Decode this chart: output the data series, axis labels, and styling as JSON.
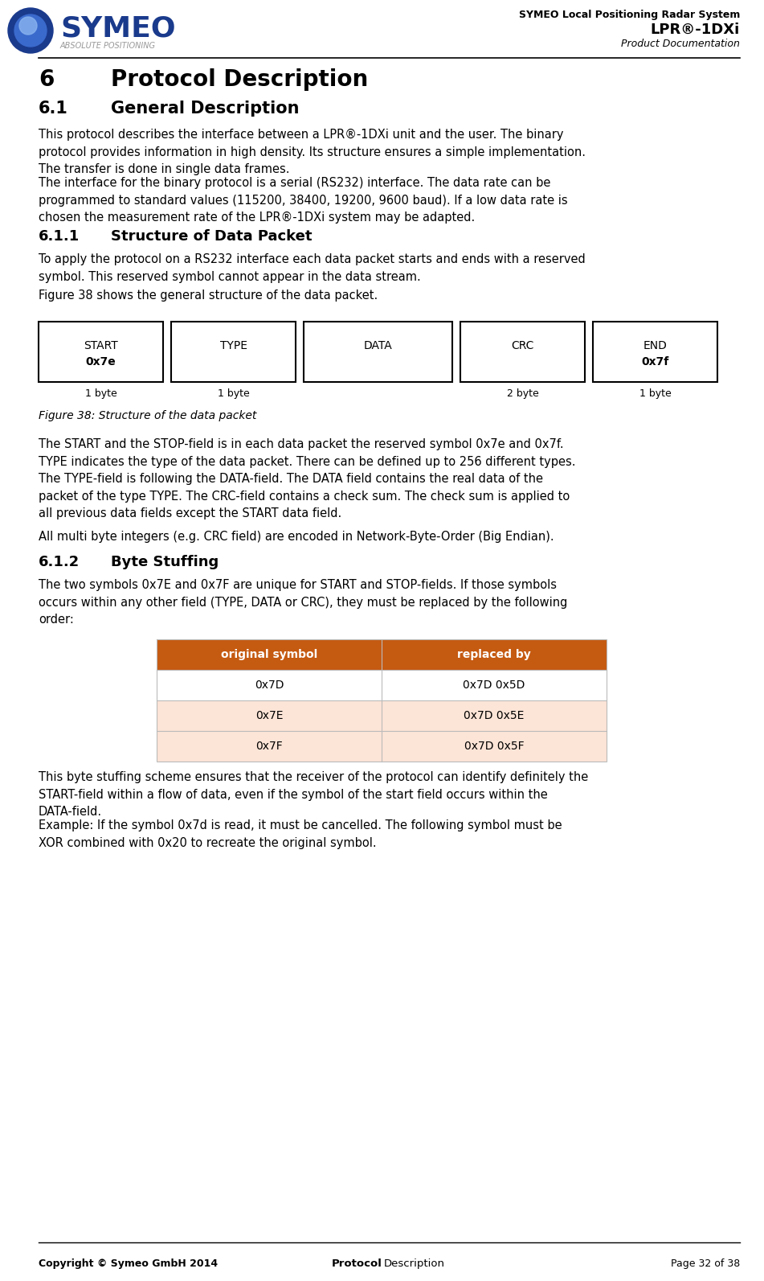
{
  "page_width": 9.51,
  "page_height": 15.93,
  "bg_color": "#ffffff",
  "header_title_line1": "SYMEO Local Positioning Radar System",
  "header_title_line2": "LPR®-1DXi",
  "header_title_line3": "Product Documentation",
  "body_61_p1": "This protocol describes the interface between a LPR®-1DXi unit and the user. The binary\nprotocol provides information in high density. Its structure ensures a simple implementation.\nThe transfer is done in single data frames.",
  "body_61_p2": "The interface for the binary protocol is a serial (RS232) interface. The data rate can be\nprogrammed to standard values (115200, 38400, 19200, 9600 baud). If a low data rate is\nchosen the measurement rate of the LPR®-1DXi system may be adapted.",
  "body_611_p1": "To apply the protocol on a RS232 interface each data packet starts and ends with a reserved\nsymbol. This reserved symbol cannot appear in the data stream.",
  "body_611_p2": "Figure 38 shows the general structure of the data packet.",
  "figure_caption": "Figure 38: Structure of the data packet",
  "body_after_fig": "The START and the STOP-field is in each data packet the reserved symbol 0x7e and 0x7f.\nTYPE indicates the type of the data packet. There can be defined up to 256 different types.\nThe TYPE-field is following the DATA-field. The DATA field contains the real data of the\npacket of the type TYPE. The CRC-field contains a check sum. The check sum is applied to\nall previous data fields except the START data field.",
  "body_bigendian": "All multi byte integers (e.g. CRC field) are encoded in Network-Byte-Order (Big Endian).",
  "body_612_text": "The two symbols 0x7E and 0x7F are unique for START and STOP-fields. If those symbols\noccurs within any other field (TYPE, DATA or CRC), they must be replaced by the following\norder:",
  "table_header": [
    "original symbol",
    "replaced by"
  ],
  "table_rows": [
    [
      "0x7D",
      "0x7D 0x5D"
    ],
    [
      "0x7E",
      "0x7D 0x5E"
    ],
    [
      "0x7F",
      "0x7D 0x5F"
    ]
  ],
  "table_header_bg": "#c55a11",
  "table_row_bgs": [
    "#ffffff",
    "#fce4d6",
    "#ffffff",
    "#fce4d6"
  ],
  "body_after_table_p1": "This byte stuffing scheme ensures that the receiver of the protocol can identify definitely the\nSTART-field within a flow of data, even if the symbol of the start field occurs within the\nDATA-field.",
  "body_after_table_p2": "Example: If the symbol 0x7d is read, it must be cancelled. The following symbol must be\nXOR combined with 0x20 to recreate the original symbol.",
  "footer_left": "Copyright © Symeo GmbH 2014",
  "footer_right": "Page 32 of 38",
  "text_color": "#000000",
  "logo_blue_dark": "#1a3a8c",
  "logo_blue_mid": "#3060c0",
  "logo_blue_light": "#7090e0"
}
